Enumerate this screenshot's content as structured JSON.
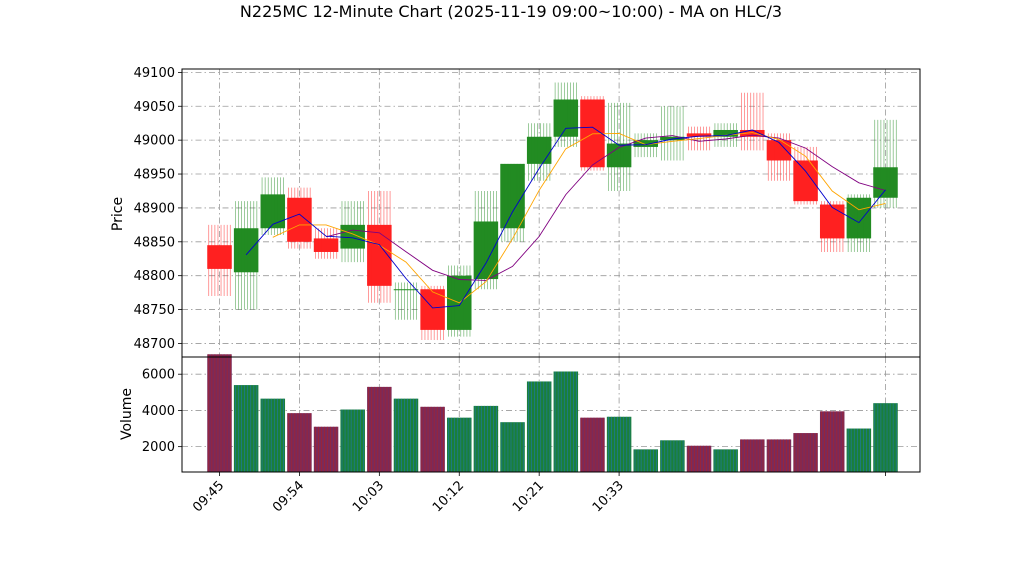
{
  "chart_data": {
    "type": "candlestick",
    "title": "N225MC 12-Minute Chart (2025-11-19 09:00~10:00) - MA on HLC/3",
    "price_axis": {
      "label": "Price",
      "ylim": [
        48680,
        49105
      ],
      "ticks": [
        48700,
        48750,
        48800,
        48850,
        48900,
        48950,
        49000,
        49050,
        49100
      ]
    },
    "volume_axis": {
      "label": "Volume",
      "ylim": [
        600,
        6950
      ],
      "ticks": [
        2000,
        4000,
        6000
      ]
    },
    "x_tick_labels": [
      "09:45",
      "09:54",
      "10:03",
      "10:12",
      "10:21",
      "10:33"
    ],
    "grid": true,
    "colors": {
      "up": "#228b22",
      "down": "#ff2020",
      "ma_short": "#0000cd",
      "ma_mid": "#ffa500",
      "ma_long": "#800080",
      "vol_up": "#1f77b4",
      "vol_down": "#b22222"
    },
    "candles": [
      {
        "o": 48845,
        "h": 48875,
        "l": 48770,
        "c": 48810,
        "v": 7100
      },
      {
        "o": 48805,
        "h": 48910,
        "l": 48750,
        "c": 48870,
        "v": 5400
      },
      {
        "o": 48870,
        "h": 48945,
        "l": 48860,
        "c": 48920,
        "v": 4650
      },
      {
        "o": 48915,
        "h": 48930,
        "l": 48840,
        "c": 48850,
        "v": 3850
      },
      {
        "o": 48855,
        "h": 48870,
        "l": 48825,
        "c": 48835,
        "v": 3100
      },
      {
        "o": 48840,
        "h": 48910,
        "l": 48820,
        "c": 48875,
        "v": 4050
      },
      {
        "o": 48875,
        "h": 48925,
        "l": 48760,
        "c": 48785,
        "v": 5300
      },
      {
        "o": 48780,
        "h": 48790,
        "l": 48735,
        "c": 48780,
        "v": 4650
      },
      {
        "o": 48780,
        "h": 48785,
        "l": 48705,
        "c": 48720,
        "v": 4200
      },
      {
        "o": 48720,
        "h": 48815,
        "l": 48710,
        "c": 48800,
        "v": 3600
      },
      {
        "o": 48795,
        "h": 48925,
        "l": 48780,
        "c": 48880,
        "v": 4250
      },
      {
        "o": 48870,
        "h": 48965,
        "l": 48850,
        "c": 48965,
        "v": 3350
      },
      {
        "o": 48965,
        "h": 49025,
        "l": 48940,
        "c": 49005,
        "v": 5600
      },
      {
        "o": 49005,
        "h": 49085,
        "l": 48990,
        "c": 49060,
        "v": 6150
      },
      {
        "o": 49060,
        "h": 49065,
        "l": 48955,
        "c": 48960,
        "v": 3600
      },
      {
        "o": 48960,
        "h": 49055,
        "l": 48925,
        "c": 48995,
        "v": 3650
      },
      {
        "o": 48990,
        "h": 49010,
        "l": 48975,
        "c": 49000,
        "v": 1850
      },
      {
        "o": 49000,
        "h": 49050,
        "l": 48970,
        "c": 49005,
        "v": 2350
      },
      {
        "o": 49010,
        "h": 49020,
        "l": 48985,
        "c": 49005,
        "v": 2050
      },
      {
        "o": 49005,
        "h": 49025,
        "l": 48990,
        "c": 49015,
        "v": 1850
      },
      {
        "o": 49015,
        "h": 49070,
        "l": 48985,
        "c": 49005,
        "v": 2400
      },
      {
        "o": 49000,
        "h": 49010,
        "l": 48940,
        "c": 48970,
        "v": 2400
      },
      {
        "o": 48970,
        "h": 48990,
        "l": 48905,
        "c": 48910,
        "v": 2750
      },
      {
        "o": 48905,
        "h": 48910,
        "l": 48835,
        "c": 48855,
        "v": 3950
      },
      {
        "o": 48855,
        "h": 48920,
        "l": 48835,
        "c": 48915,
        "v": 3000
      },
      {
        "o": 48915,
        "h": 49030,
        "l": 48900,
        "c": 48960,
        "v": 4400
      }
    ]
  }
}
